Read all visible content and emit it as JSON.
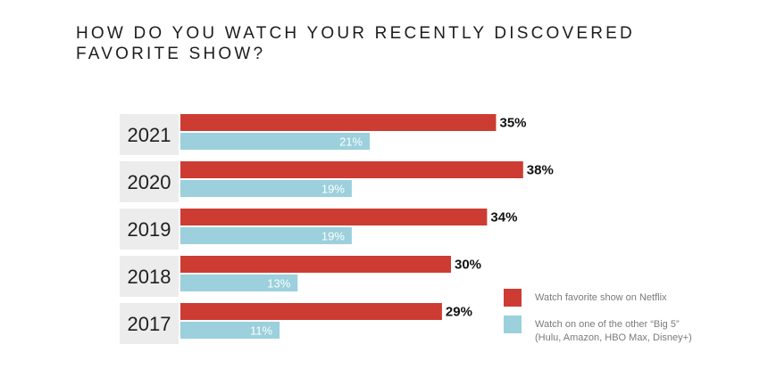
{
  "title": "HOW DO YOU WATCH YOUR RECENTLY DISCOVERED FAVORITE SHOW?",
  "colors": {
    "netflix": "#cd3c32",
    "big5": "#9bd0dc",
    "year_box": "#ececec"
  },
  "legend": {
    "netflix_label": "Watch favorite show on Netflix",
    "big5_label": "Watch on one of the other “Big 5”",
    "big5_sublabel": "(Hulu, Amazon, HBO Max, Disney+)"
  },
  "chart_data": {
    "type": "bar",
    "orientation": "horizontal",
    "title": "HOW DO YOU WATCH YOUR RECENTLY DISCOVERED FAVORITE SHOW?",
    "categories": [
      "2021",
      "2020",
      "2019",
      "2018",
      "2017"
    ],
    "series": [
      {
        "name": "Watch favorite show on Netflix",
        "values": [
          35,
          38,
          34,
          30,
          29
        ],
        "labels": [
          "35%",
          "38%",
          "34%",
          "30%",
          "29%"
        ]
      },
      {
        "name": "Watch on one of the other “Big 5” (Hulu, Amazon, HBO Max, Disney+)",
        "values": [
          21,
          19,
          19,
          13,
          11
        ],
        "labels": [
          "21%",
          "19%",
          "19%",
          "13%",
          "11%"
        ]
      }
    ],
    "xlim": [
      0,
      100
    ],
    "grid": false,
    "legend_position": "bottom-right"
  }
}
